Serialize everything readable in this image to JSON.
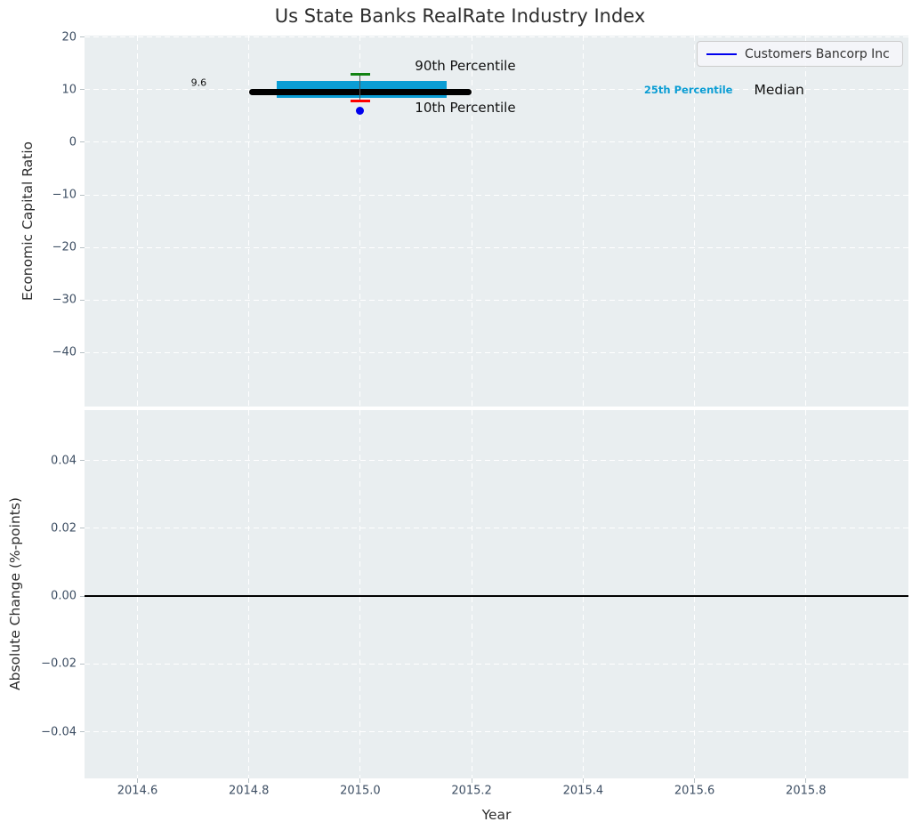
{
  "title": "Us State Banks RealRate Industry Index",
  "chart_data": [
    {
      "type": "percentile_band_timeseries",
      "title": "Us State Banks RealRate Industry Index",
      "ylabel": "Economic Capital Ratio",
      "xlim": [
        2014.505,
        2015.984
      ],
      "ylim": [
        -50.3,
        20.3
      ],
      "x_ticks": [
        2014.6,
        2014.8,
        2015.0,
        2015.2,
        2015.4,
        2015.6,
        2015.8
      ],
      "y_ticks": [
        20,
        10,
        0,
        -10,
        -20,
        -30,
        -40
      ],
      "y_tick_labels": [
        "20",
        "10",
        "0",
        "−10",
        "−20",
        "−30",
        "−40"
      ],
      "grid": "white-dashed",
      "background_color": "#e9eef0",
      "legend": {
        "label": "Customers Bancorp Inc",
        "line_color": "#0000ee",
        "position": "upper right"
      },
      "median": {
        "value": 9.6,
        "x_start": 2014.8,
        "x_end": 2015.2,
        "color": "#000000"
      },
      "iqr_band": {
        "low": 8.4,
        "high": 11.7,
        "x_start": 2014.85,
        "x_end": 2015.155,
        "color": "#0b9dd4"
      },
      "p90": {
        "value": 13.0,
        "x": 2015.0,
        "cap_half_width": 0.017,
        "color": "#128312"
      },
      "p10": {
        "value": 7.9,
        "x": 2015.0,
        "cap_half_width": 0.017,
        "color": "#ff0000"
      },
      "whisker_color": "#555555",
      "company_point": {
        "name": "Customers Bancorp Inc",
        "x": 2015.0,
        "value": 6.0,
        "color": "#0000ee"
      },
      "annotations": [
        {
          "text": "9.6",
          "x": 2014.71,
          "y": 11.4,
          "color": "#111111",
          "size": 11,
          "bold": false,
          "align": "center"
        },
        {
          "text": "90th Percentile",
          "x": 2015.098,
          "y": 14.6,
          "color": "#111111",
          "size": 15,
          "bold": false,
          "align": "left"
        },
        {
          "text": "10th Percentile",
          "x": 2015.098,
          "y": 6.6,
          "color": "#111111",
          "size": 15,
          "bold": false,
          "align": "left"
        },
        {
          "text": "25th Percentile",
          "x": 2015.589,
          "y": 10.0,
          "color": "#0b9dd4",
          "size": 11.5,
          "bold": true,
          "align": "center"
        },
        {
          "text": "Median",
          "x": 2015.752,
          "y": 9.95,
          "color": "#111111",
          "size": 15.5,
          "bold": false,
          "align": "center"
        }
      ]
    },
    {
      "type": "line",
      "ylabel": "Absolute Change (%-points)",
      "xlabel": "Year",
      "xlim": [
        2014.505,
        2015.984
      ],
      "ylim": [
        -0.0537,
        0.0548
      ],
      "x_ticks": [
        2014.6,
        2014.8,
        2015.0,
        2015.2,
        2015.4,
        2015.6,
        2015.8
      ],
      "x_tick_labels": [
        "2014.6",
        "2014.8",
        "2015.0",
        "2015.2",
        "2015.4",
        "2015.6",
        "2015.8"
      ],
      "y_ticks": [
        0.04,
        0.02,
        0.0,
        -0.02,
        -0.04
      ],
      "y_tick_labels": [
        "0.04",
        "0.02",
        "0.00",
        "−0.02",
        "−0.04"
      ],
      "grid": "white-dashed",
      "background_color": "#e9eef0",
      "zero_line": {
        "value": 0.0,
        "color": "#000000"
      },
      "series": []
    }
  ]
}
